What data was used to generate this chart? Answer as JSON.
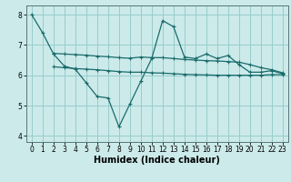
{
  "xlabel": "Humidex (Indice chaleur)",
  "bg_color": "#cceaea",
  "grid_color": "#99cccc",
  "line_color": "#1a6b6b",
  "line1_x": [
    0,
    1,
    2,
    3,
    4,
    5,
    6,
    7,
    8,
    9,
    10,
    11,
    12,
    13,
    14,
    15,
    16,
    17,
    18,
    19,
    20,
    21,
    22,
    23
  ],
  "line1_y": [
    8.0,
    7.4,
    6.7,
    6.3,
    6.2,
    5.75,
    5.3,
    5.25,
    4.3,
    5.05,
    5.8,
    6.55,
    7.8,
    7.6,
    6.6,
    6.55,
    6.7,
    6.55,
    6.65,
    6.35,
    6.1,
    6.1,
    6.15,
    6.05
  ],
  "line2_x": [
    2,
    10,
    23
  ],
  "line2_y": [
    6.72,
    6.55,
    6.55
  ],
  "line2_all_x": [
    2,
    3,
    4,
    5,
    6,
    7,
    8,
    9,
    10,
    11,
    12,
    13,
    14,
    15,
    16,
    17,
    18,
    19,
    20,
    21,
    22,
    23
  ],
  "line2_all_y": [
    6.72,
    6.7,
    6.68,
    6.66,
    6.63,
    6.61,
    6.58,
    6.56,
    6.6,
    6.58,
    6.58,
    6.55,
    6.52,
    6.5,
    6.48,
    6.47,
    6.45,
    6.43,
    6.35,
    6.25,
    6.18,
    6.08
  ],
  "line3_all_x": [
    2,
    3,
    4,
    5,
    6,
    7,
    8,
    9,
    10,
    11,
    12,
    13,
    14,
    15,
    16,
    17,
    18,
    19,
    20,
    21,
    22,
    23
  ],
  "line3_all_y": [
    6.28,
    6.25,
    6.22,
    6.2,
    6.18,
    6.15,
    6.12,
    6.1,
    6.1,
    6.08,
    6.07,
    6.05,
    6.03,
    6.02,
    6.01,
    6.0,
    6.0,
    6.0,
    6.0,
    6.0,
    6.02,
    6.02
  ],
  "ylim": [
    3.8,
    8.3
  ],
  "xlim": [
    -0.5,
    23.5
  ],
  "yticks": [
    4,
    5,
    6,
    7,
    8
  ],
  "xticks": [
    0,
    1,
    2,
    3,
    4,
    5,
    6,
    7,
    8,
    9,
    10,
    11,
    12,
    13,
    14,
    15,
    16,
    17,
    18,
    19,
    20,
    21,
    22,
    23
  ],
  "xlabel_fontsize": 7,
  "tick_fontsize": 5.5
}
